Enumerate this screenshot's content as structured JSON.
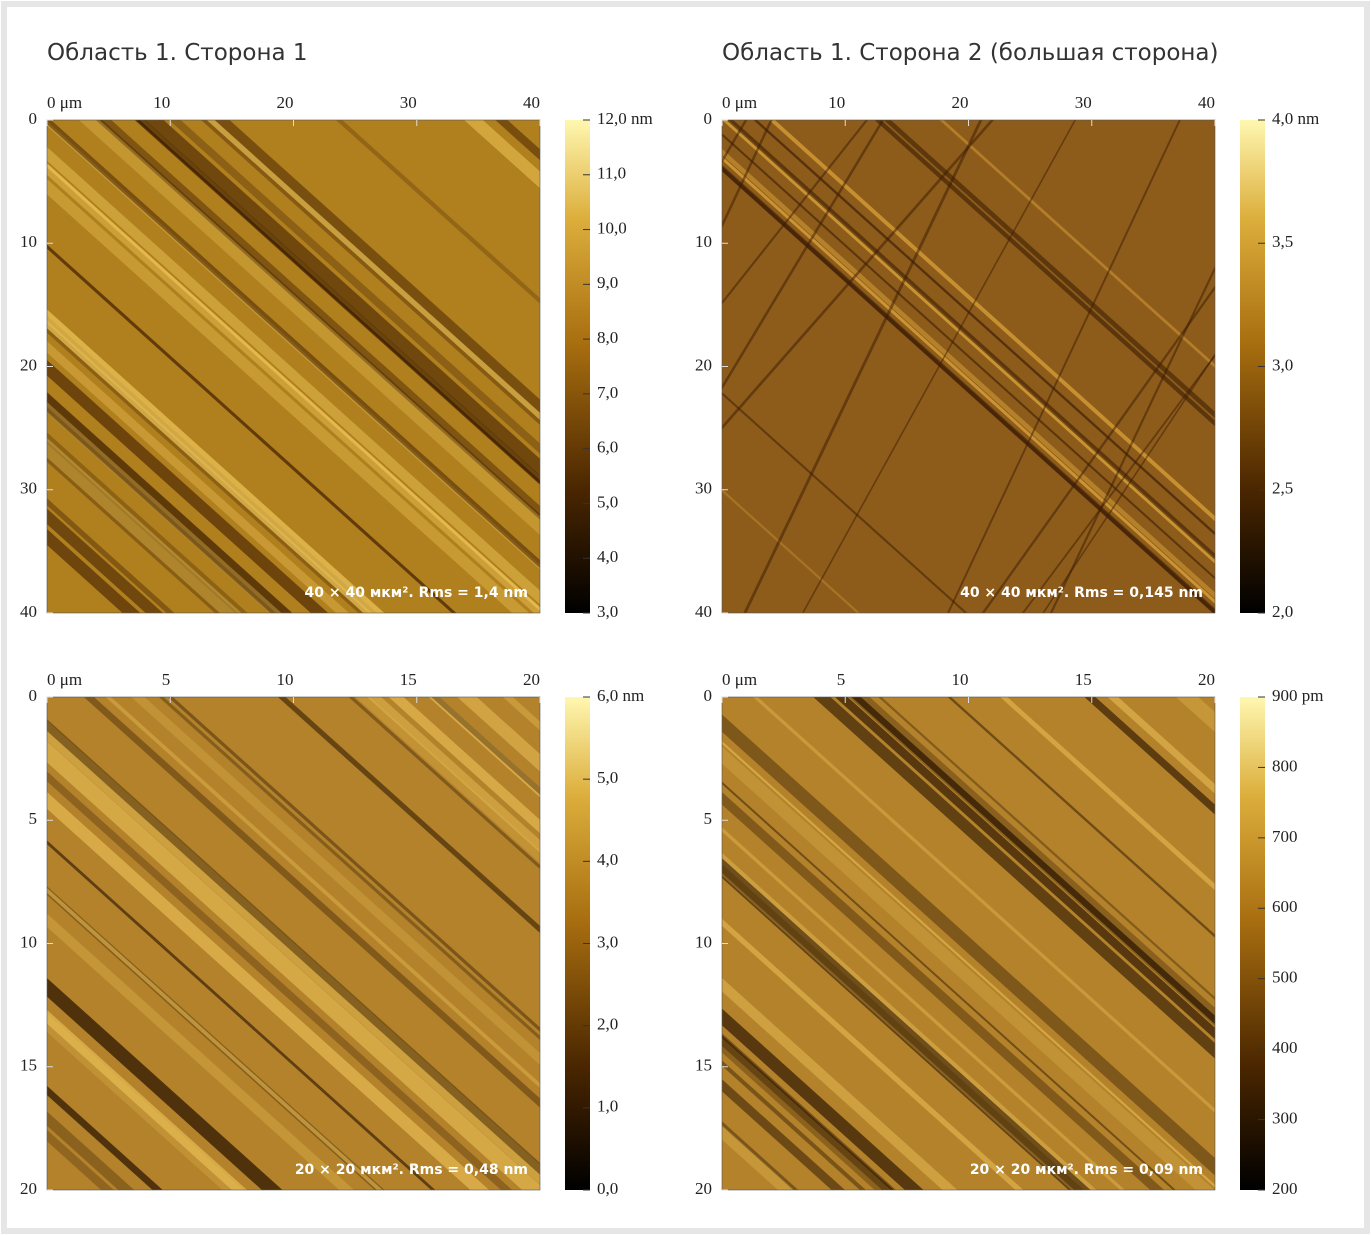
{
  "chart_data": [
    {
      "type": "image",
      "title": "Область 1. Сторона 1",
      "xlim": [
        0,
        40
      ],
      "ylim": [
        0,
        40
      ],
      "xticks": [
        {
          "value": 0,
          "label": "0 μm"
        },
        10,
        20,
        30,
        40
      ],
      "yticks": [
        0,
        10,
        20,
        30,
        40
      ],
      "zlim": [
        3,
        12
      ],
      "zticks": [
        {
          "value": 12,
          "label": "12,0 nm"
        },
        {
          "value": 11,
          "label": "11,0"
        },
        {
          "value": 10,
          "label": "10,0"
        },
        {
          "value": 9,
          "label": "9,0"
        },
        {
          "value": 8,
          "label": "8,0"
        },
        {
          "value": 7,
          "label": "7,0"
        },
        {
          "value": 6,
          "label": "6,0"
        },
        {
          "value": 5,
          "label": "5,0"
        },
        {
          "value": 4,
          "label": "4,0"
        },
        {
          "value": 3,
          "label": "3,0"
        }
      ],
      "caption": "40 × 40 мкм². Rms = 1,4 nm"
    },
    {
      "type": "image",
      "title": "Область 1. Сторона 2 (большая сторона)",
      "xlim": [
        0,
        40
      ],
      "ylim": [
        0,
        40
      ],
      "xticks": [
        {
          "value": 0,
          "label": "0 μm"
        },
        10,
        20,
        30,
        40
      ],
      "yticks": [
        0,
        10,
        20,
        30,
        40
      ],
      "zlim": [
        2,
        4
      ],
      "zticks": [
        {
          "value": 4,
          "label": "4,0 nm"
        },
        {
          "value": 3.5,
          "label": "3,5"
        },
        {
          "value": 3,
          "label": "3,0"
        },
        {
          "value": 2.5,
          "label": "2,5"
        },
        {
          "value": 2,
          "label": "2,0"
        }
      ],
      "caption": "40 × 40 мкм². Rms = 0,145 nm"
    },
    {
      "type": "image",
      "xlim": [
        0,
        20
      ],
      "ylim": [
        0,
        20
      ],
      "xticks": [
        {
          "value": 0,
          "label": "0 μm"
        },
        5,
        10,
        15,
        20
      ],
      "yticks": [
        0,
        5,
        10,
        15,
        20
      ],
      "zlim": [
        0,
        6
      ],
      "zticks": [
        {
          "value": 6,
          "label": "6,0 nm"
        },
        {
          "value": 5,
          "label": "5,0"
        },
        {
          "value": 4,
          "label": "4,0"
        },
        {
          "value": 3,
          "label": "3,0"
        },
        {
          "value": 2,
          "label": "2,0"
        },
        {
          "value": 1,
          "label": "1,0"
        },
        {
          "value": 0,
          "label": "0,0"
        }
      ],
      "caption": "20 × 20 мкм². Rms = 0,48 nm"
    },
    {
      "type": "image",
      "xlim": [
        0,
        20
      ],
      "ylim": [
        0,
        20
      ],
      "xticks": [
        {
          "value": 0,
          "label": "0 μm"
        },
        5,
        10,
        15,
        20
      ],
      "yticks": [
        0,
        5,
        10,
        15,
        20
      ],
      "zlim": [
        200,
        900
      ],
      "zticks": [
        {
          "value": 900,
          "label": "900 pm"
        },
        800,
        700,
        600,
        500,
        400,
        300,
        200
      ],
      "caption": "20 × 20 мкм². Rms = 0,09 nm"
    }
  ]
}
